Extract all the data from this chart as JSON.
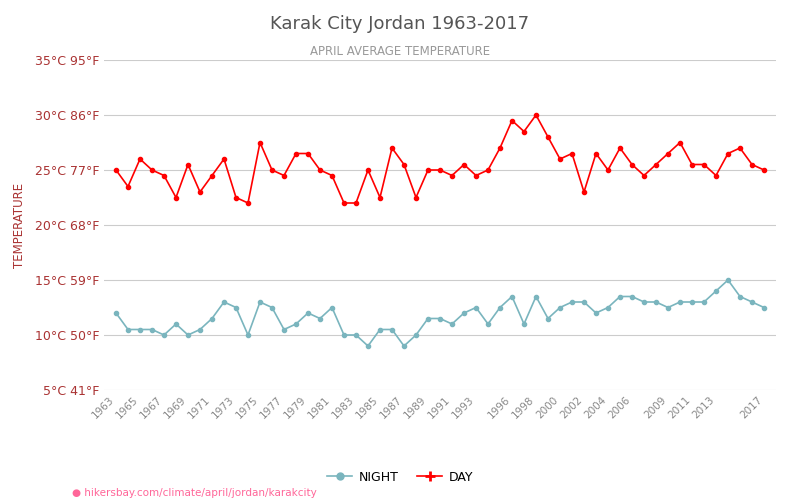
{
  "title": "Karak City Jordan 1963-2017",
  "subtitle": "APRIL AVERAGE TEMPERATURE",
  "ylabel": "TEMPERATURE",
  "footer": "hikersbay.com/climate/april/jordan/karakcity",
  "ylim": [
    5,
    35
  ],
  "yticks_c": [
    5,
    10,
    15,
    20,
    25,
    30,
    35
  ],
  "yticks_f": [
    41,
    50,
    59,
    68,
    77,
    86,
    95
  ],
  "years": [
    1963,
    1964,
    1965,
    1966,
    1967,
    1968,
    1969,
    1970,
    1971,
    1972,
    1973,
    1974,
    1975,
    1976,
    1977,
    1978,
    1979,
    1980,
    1981,
    1982,
    1983,
    1984,
    1985,
    1986,
    1987,
    1988,
    1989,
    1990,
    1991,
    1992,
    1993,
    1994,
    1995,
    1996,
    1997,
    1998,
    1999,
    2000,
    2001,
    2002,
    2003,
    2004,
    2005,
    2006,
    2007,
    2008,
    2009,
    2010,
    2011,
    2012,
    2013,
    2014,
    2015,
    2016,
    2017
  ],
  "day_temps": [
    25.0,
    23.5,
    26.0,
    25.0,
    24.5,
    22.5,
    25.5,
    23.0,
    24.5,
    26.0,
    22.5,
    22.0,
    27.5,
    25.0,
    24.5,
    26.5,
    26.5,
    25.0,
    24.5,
    22.0,
    22.0,
    25.0,
    22.5,
    27.0,
    25.5,
    22.5,
    25.0,
    25.0,
    24.5,
    25.5,
    24.5,
    25.0,
    27.0,
    29.5,
    28.5,
    30.0,
    28.0,
    26.0,
    26.5,
    23.0,
    26.5,
    25.0,
    27.0,
    25.5,
    24.5,
    25.5,
    26.5,
    27.5,
    25.5,
    25.5,
    24.5,
    26.5,
    27.0,
    25.5,
    25.0
  ],
  "night_temps": [
    12.0,
    10.5,
    10.5,
    10.5,
    10.0,
    11.0,
    10.0,
    10.5,
    11.5,
    13.0,
    12.5,
    10.0,
    13.0,
    12.5,
    10.5,
    11.0,
    12.0,
    11.5,
    12.5,
    10.0,
    10.0,
    9.0,
    10.5,
    10.5,
    9.0,
    10.0,
    11.5,
    11.5,
    11.0,
    12.0,
    12.5,
    11.0,
    12.5,
    13.5,
    11.0,
    13.5,
    11.5,
    12.5,
    13.0,
    13.0,
    12.0,
    12.5,
    13.5,
    13.5,
    13.0,
    13.0,
    12.5,
    13.0,
    13.0,
    13.0,
    14.0,
    15.0,
    13.5,
    13.0,
    12.5
  ],
  "day_color": "#ff0000",
  "night_color": "#7ab5be",
  "title_color": "#555555",
  "subtitle_color": "#999999",
  "label_color": "#aa3333",
  "tick_color": "#888888",
  "grid_color": "#cccccc",
  "footer_color": "#ff6699",
  "background_color": "#ffffff",
  "xtick_years": [
    1963,
    1965,
    1967,
    1969,
    1971,
    1973,
    1975,
    1977,
    1979,
    1981,
    1983,
    1985,
    1987,
    1989,
    1991,
    1993,
    1996,
    1998,
    2000,
    2002,
    2004,
    2006,
    2009,
    2011,
    2013,
    2017
  ]
}
